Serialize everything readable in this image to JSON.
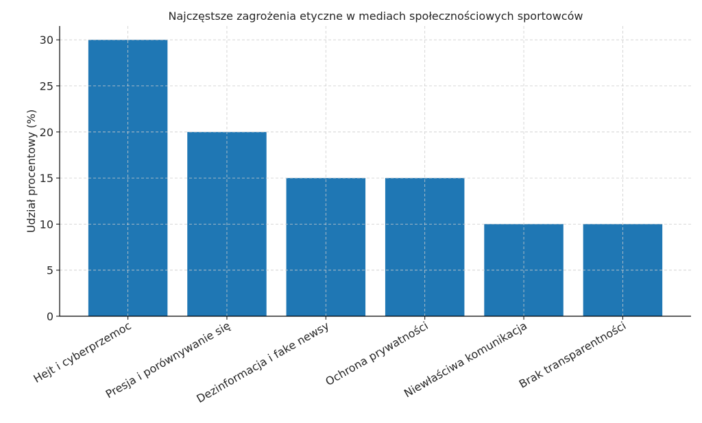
{
  "chart_data": {
    "type": "bar",
    "title": "Najczęstsze zagrożenia etyczne w mediach społecznościowych sportowców",
    "xlabel": "",
    "ylabel": "Udział procentowy (%)",
    "categories": [
      "Hejt i cyberprzemoc",
      "Presja i porównywanie się",
      "Dezinformacja i fake newsy",
      "Ochrona prywatności",
      "Niewłaściwa komunikacja",
      "Brak transparentności"
    ],
    "values": [
      30,
      20,
      15,
      15,
      10,
      10
    ],
    "ylim": [
      0,
      31.5
    ],
    "yticks": [
      "0",
      "5",
      "10",
      "15",
      "20",
      "25",
      "30"
    ],
    "grid": true,
    "bar_color": "#1f77b4",
    "x_tick_rotation_deg": 30
  }
}
